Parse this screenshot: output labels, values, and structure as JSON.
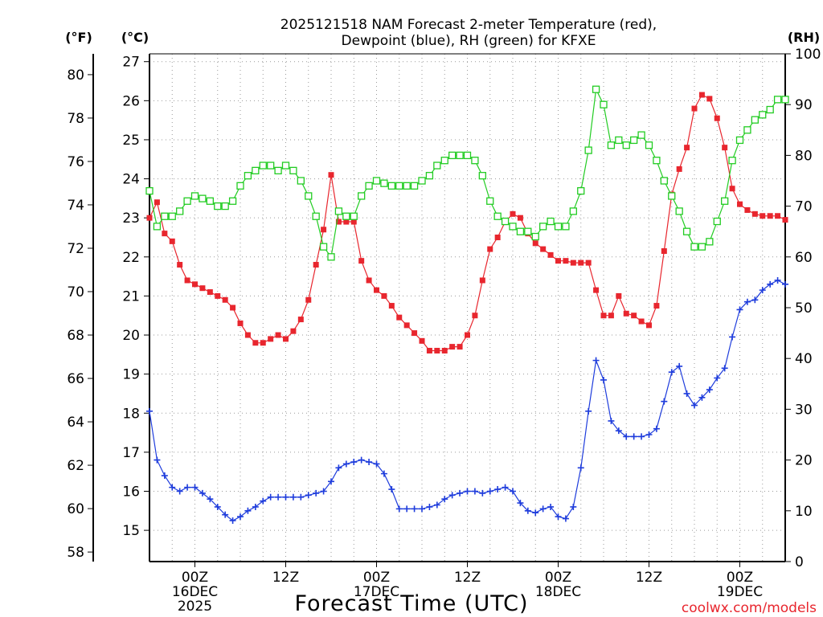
{
  "chart_data": {
    "type": "line",
    "title_line1": "2025121518 NAM Forecast 2-meter Temperature (red),",
    "title_line2": "Dewpoint (blue), RH (green) for KFXE",
    "xlabel": "Forecast Time (UTC)",
    "credit": "coolwx.com/models",
    "unit_left_f": "(°F)",
    "unit_left_c": "(°C)",
    "unit_right": "(RH)",
    "x_unit": "forecast hour",
    "xlim": [
      0,
      84
    ],
    "ylim_c": [
      14.2,
      27.2
    ],
    "ylim_rh": [
      0,
      100
    ],
    "f_ticks": [
      58,
      60,
      62,
      64,
      66,
      68,
      70,
      72,
      74,
      76,
      78,
      80
    ],
    "c_ticks": [
      15,
      16,
      17,
      18,
      19,
      20,
      21,
      22,
      23,
      24,
      25,
      26,
      27
    ],
    "rh_ticks": [
      0,
      10,
      20,
      30,
      40,
      50,
      60,
      70,
      80,
      90,
      100
    ],
    "x_ticks": [
      {
        "x": 6,
        "lines": [
          "00Z",
          "16DEC",
          "2025"
        ]
      },
      {
        "x": 18,
        "lines": [
          "12Z"
        ]
      },
      {
        "x": 30,
        "lines": [
          "00Z",
          "17DEC"
        ]
      },
      {
        "x": 42,
        "lines": [
          "12Z"
        ]
      },
      {
        "x": 54,
        "lines": [
          "00Z",
          "18DEC"
        ]
      },
      {
        "x": 66,
        "lines": [
          "12Z"
        ]
      },
      {
        "x": 78,
        "lines": [
          "00Z",
          "19DEC"
        ]
      }
    ],
    "x": [
      0,
      1,
      2,
      3,
      4,
      5,
      6,
      7,
      8,
      9,
      10,
      11,
      12,
      13,
      14,
      15,
      16,
      17,
      18,
      19,
      20,
      21,
      22,
      23,
      24,
      25,
      26,
      27,
      28,
      29,
      30,
      31,
      32,
      33,
      34,
      35,
      36,
      37,
      38,
      39,
      40,
      41,
      42,
      43,
      44,
      45,
      46,
      47,
      48,
      49,
      50,
      51,
      52,
      53,
      54,
      55,
      56,
      57,
      58,
      59,
      60,
      61,
      62,
      63,
      64,
      65,
      66,
      67,
      68,
      69,
      70,
      71,
      72,
      73,
      74,
      75,
      76,
      77,
      78,
      79,
      80,
      81,
      82,
      83,
      84
    ],
    "series": [
      {
        "name": "Temperature",
        "unit": "C",
        "color": "#e8262e",
        "marker": "filled-square",
        "values": [
          23.0,
          23.4,
          22.6,
          22.4,
          21.8,
          21.4,
          21.3,
          21.2,
          21.1,
          21.0,
          20.9,
          20.7,
          20.3,
          20.0,
          19.8,
          19.8,
          19.9,
          20.0,
          19.9,
          20.1,
          20.4,
          20.9,
          21.8,
          22.7,
          24.1,
          22.9,
          22.9,
          22.9,
          21.9,
          21.4,
          21.15,
          21.0,
          20.75,
          20.45,
          20.25,
          20.05,
          19.85,
          19.6,
          19.6,
          19.6,
          19.7,
          19.7,
          20.0,
          20.5,
          21.4,
          22.2,
          22.5,
          22.9,
          23.1,
          23.0,
          22.6,
          22.35,
          22.2,
          22.05,
          21.9,
          21.9,
          21.85,
          21.85,
          21.85,
          21.15,
          20.5,
          20.5,
          21.0,
          20.55,
          20.5,
          20.35,
          20.25,
          20.75,
          22.15,
          23.6,
          24.25,
          24.8,
          25.8,
          26.15,
          26.05,
          25.55,
          24.8,
          23.75,
          23.35,
          23.2,
          23.1,
          23.05,
          23.05,
          23.05,
          22.95
        ]
      },
      {
        "name": "Dewpoint",
        "unit": "C",
        "color": "#1e3cdc",
        "marker": "plus",
        "values": [
          18.05,
          16.8,
          16.4,
          16.1,
          16.0,
          16.1,
          16.1,
          15.95,
          15.8,
          15.6,
          15.4,
          15.25,
          15.35,
          15.5,
          15.6,
          15.75,
          15.85,
          15.85,
          15.85,
          15.85,
          15.85,
          15.9,
          15.95,
          16.0,
          16.25,
          16.6,
          16.7,
          16.75,
          16.8,
          16.75,
          16.7,
          16.45,
          16.05,
          15.55,
          15.55,
          15.55,
          15.55,
          15.6,
          15.65,
          15.8,
          15.9,
          15.95,
          16.0,
          16.0,
          15.95,
          16.0,
          16.05,
          16.1,
          16.0,
          15.7,
          15.5,
          15.45,
          15.55,
          15.6,
          15.35,
          15.3,
          15.6,
          16.6,
          18.05,
          19.35,
          18.85,
          17.8,
          17.55,
          17.4,
          17.4,
          17.4,
          17.45,
          17.6,
          18.3,
          19.05,
          19.2,
          18.5,
          18.2,
          18.4,
          18.6,
          18.9,
          19.15,
          19.95,
          20.65,
          20.85,
          20.9,
          21.15,
          21.3,
          21.4,
          21.3
        ]
      },
      {
        "name": "RH",
        "unit": "%",
        "color": "#22cc22",
        "marker": "open-square",
        "values": [
          73,
          66,
          68,
          68,
          69,
          71,
          72,
          71.5,
          71,
          70,
          70,
          71,
          74,
          76,
          77,
          78,
          78,
          77,
          78,
          77,
          75,
          72,
          68,
          62,
          60,
          69,
          68,
          68,
          72,
          74,
          75,
          74.5,
          74,
          74,
          74,
          74,
          75,
          76,
          78,
          79,
          80,
          80,
          80,
          79,
          76,
          71,
          68,
          67,
          66,
          65,
          65,
          64,
          66,
          67,
          66,
          66,
          69,
          73,
          81,
          93,
          90,
          82,
          83,
          82,
          83,
          84,
          82,
          79,
          75,
          72,
          69,
          65,
          62,
          62,
          63,
          67,
          71,
          79,
          83,
          85,
          87,
          88,
          89,
          91,
          91
        ]
      }
    ]
  }
}
